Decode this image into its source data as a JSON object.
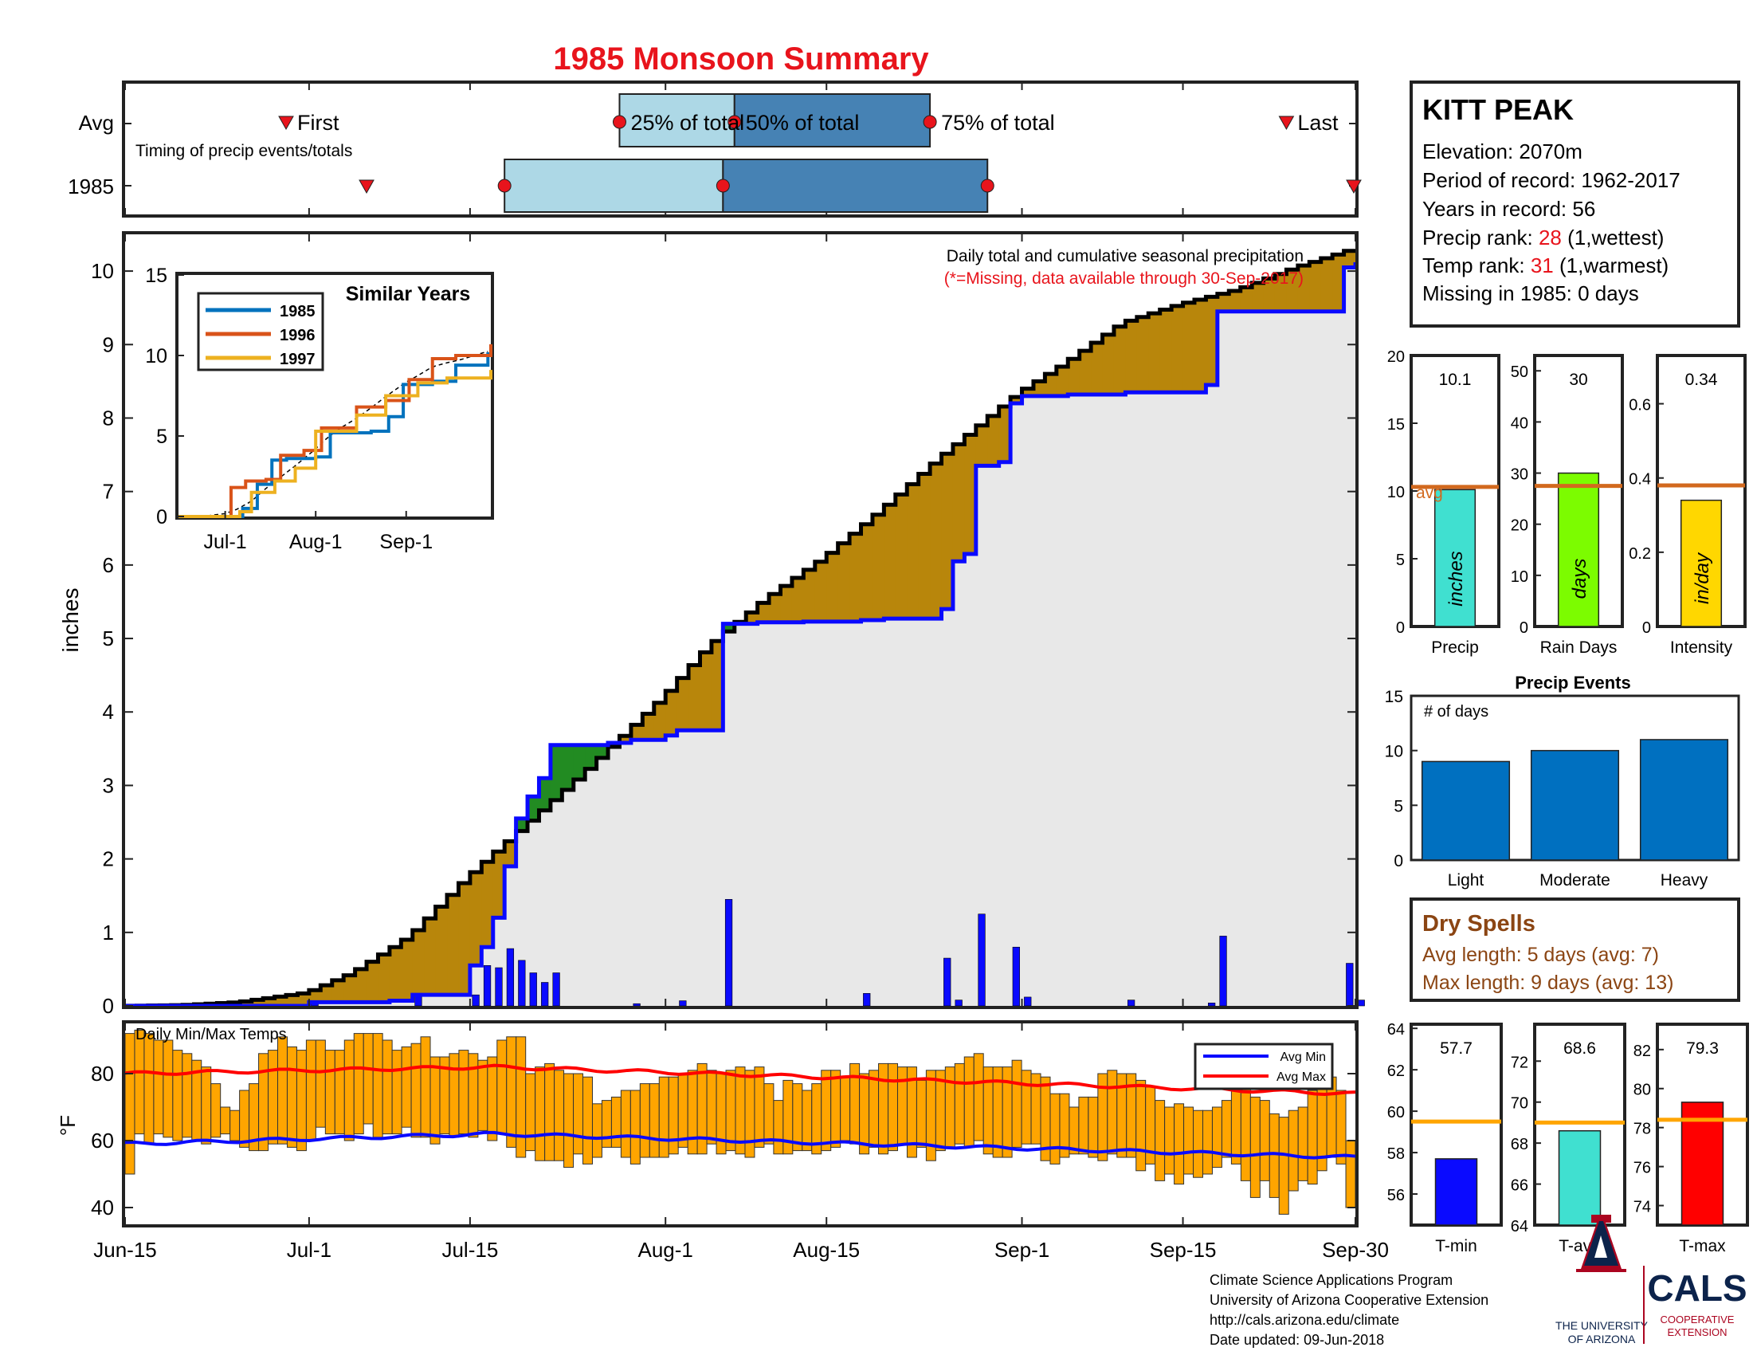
{
  "title": "1985 Monsoon Summary",
  "timing": {
    "row_labels": [
      "Avg",
      "1985"
    ],
    "caption": "Timing of precip events/totals",
    "first_label": "First",
    "last_label": "Last",
    "pct_labels": [
      "25% of total",
      "50% of total",
      "75% of total"
    ],
    "avg": {
      "first": "Jun-29",
      "p25": "Jul-28",
      "p50": "Aug-07",
      "p75": "Aug-24",
      "last": "Sep-24"
    },
    "year": {
      "first": "Jul-06",
      "p25": "Jul-18",
      "p50": "Aug-06",
      "p75": "Aug-29",
      "last": "Sep-30"
    }
  },
  "station": {
    "name": "KITT PEAK",
    "elevation": "Elevation: 2070m",
    "period": "Period of record: 1962-2017",
    "years": "Years in record: 56",
    "precip_rank_label": "Precip rank: ",
    "precip_rank": "28",
    "precip_rank_note": " (1,wettest)",
    "temp_rank_label": "Temp rank: ",
    "temp_rank": "31",
    "temp_rank_note": " (1,warmest)",
    "missing": "Missing in 1985: 0 days"
  },
  "colors": {
    "title": "#e8141c",
    "rank": "#e8141c",
    "below_avg_fill": "#b8860b",
    "above_avg_fill": "#228b22",
    "year_line": "#0a0aff",
    "daily_bar": "#0a0aff",
    "bg_fill": "#e8e8e8",
    "temp_bar": "#ffa500",
    "avg_min": "#0a0aff",
    "avg_max": "#ff0000",
    "avg_line": "#d2691e",
    "precip_bar": "#40e0d0",
    "raindays_bar": "#7cfc00",
    "intensity_bar": "#ffd700",
    "event_bar": "#0070c0",
    "dry_text": "#8b4513",
    "tmin_bar": "#0a0aff",
    "tavg_bar": "#40e0d0",
    "tmax_bar": "#ff0000",
    "temp_avg_line": "#ffa500",
    "s1985": "#0072bd",
    "s1996": "#d95319",
    "s1997": "#edb120"
  },
  "main_chart": {
    "note": "Daily total and cumulative seasonal precipitation",
    "missing_note": "(*=Missing, data available through 30-Sep-2017)",
    "ylabel": "inches",
    "yticks": [
      "0",
      "1",
      "2",
      "3",
      "4",
      "5",
      "6",
      "7",
      "8",
      "9",
      "10"
    ],
    "xticks": [
      "Jun-15",
      "Jul-1",
      "Jul-15",
      "Aug-1",
      "Aug-15",
      "Sep-1",
      "Sep-15",
      "Sep-30"
    ]
  },
  "similar_years": {
    "title": "Similar Years",
    "legend": [
      "1985",
      "1996",
      "1997"
    ],
    "yticks": [
      "0",
      "5",
      "10",
      "15"
    ],
    "xticks": [
      "Jul-1",
      "Aug-1",
      "Sep-1"
    ]
  },
  "temps": {
    "title": "Daily Min/Max Temps",
    "ylabel": "°F",
    "yticks": [
      "40",
      "60",
      "80"
    ],
    "legend_min": "Avg Min",
    "legend_max": "Avg Max"
  },
  "summary": {
    "precip": {
      "value": "10.1",
      "unit": "inches",
      "label": "Precip",
      "yticks": [
        "0",
        "5",
        "10",
        "15",
        "20"
      ],
      "avg_label": "avg"
    },
    "rain_days": {
      "value": "30",
      "unit": "days",
      "label": "Rain Days",
      "yticks": [
        "0",
        "10",
        "20",
        "30",
        "40",
        "50"
      ]
    },
    "intensity": {
      "value": "0.34",
      "unit": "in/day",
      "label": "Intensity",
      "yticks": [
        "0",
        "0.2",
        "0.4",
        "0.6"
      ]
    }
  },
  "events": {
    "title": "Precip Events",
    "sublabel": "# of days",
    "categories": [
      "Light",
      "Moderate",
      "Heavy"
    ],
    "yticks": [
      "0",
      "5",
      "10",
      "15"
    ]
  },
  "dry_spells": {
    "title": "Dry Spells",
    "avg": "Avg length: 5 days (avg: 7)",
    "max": "Max length: 9 days (avg: 13)"
  },
  "temp_summary": {
    "tmin": {
      "value": "57.7",
      "label": "T-min",
      "yticks": [
        "56",
        "58",
        "60",
        "62",
        "64"
      ]
    },
    "tavg": {
      "value": "68.6",
      "label": "T-avg",
      "yticks": [
        "64",
        "66",
        "68",
        "70",
        "72"
      ]
    },
    "tmax": {
      "value": "79.3",
      "label": "T-max",
      "yticks": [
        "74",
        "76",
        "78",
        "80",
        "82"
      ]
    }
  },
  "footer": {
    "lines": [
      "Climate Science Applications Program",
      "University of Arizona Cooperative Extension",
      "http://cals.arizona.edu/climate",
      " Date updated: 09-Jun-2018"
    ],
    "ua_line1": "THE UNIVERSITY",
    "ua_line2": "OF ARIZONA",
    "cals": "CALS",
    "coop1": "COOPERATIVE",
    "coop2": "EXTENSION"
  },
  "chart_data": [
    {
      "type": "line",
      "title": "Daily total and cumulative seasonal precipitation",
      "ylabel": "inches",
      "xlim": [
        "Jun-15",
        "Sep-30"
      ],
      "ylim": [
        0,
        10.5
      ],
      "series": [
        {
          "name": "1985",
          "kind": "cumulative",
          "points": [
            [
              "Jun-15",
              0
            ],
            [
              "Jun-30",
              0
            ],
            [
              "Jul-01",
              0.05
            ],
            [
              "Jul-08",
              0.07
            ],
            [
              "Jul-10",
              0.15
            ],
            [
              "Jul-14",
              0.15
            ],
            [
              "Jul-15",
              0.55
            ],
            [
              "Jul-16",
              0.8
            ],
            [
              "Jul-17",
              1.2
            ],
            [
              "Jul-18",
              1.9
            ],
            [
              "Jul-19",
              2.55
            ],
            [
              "Jul-20",
              2.85
            ],
            [
              "Jul-21",
              3.1
            ],
            [
              "Jul-22",
              3.55
            ],
            [
              "Jul-27",
              3.58
            ],
            [
              "Jul-29",
              3.62
            ],
            [
              "Aug-01",
              3.68
            ],
            [
              "Aug-02",
              3.75
            ],
            [
              "Aug-06",
              5.2
            ],
            [
              "Aug-09",
              5.22
            ],
            [
              "Aug-13",
              5.23
            ],
            [
              "Aug-18",
              5.25
            ],
            [
              "Aug-20",
              5.27
            ],
            [
              "Aug-25",
              5.4
            ],
            [
              "Aug-26",
              6.05
            ],
            [
              "Aug-27",
              6.15
            ],
            [
              "Aug-28",
              7.35
            ],
            [
              "Aug-30",
              7.4
            ],
            [
              "Aug-31",
              8.2
            ],
            [
              "Sep-01",
              8.3
            ],
            [
              "Sep-05",
              8.32
            ],
            [
              "Sep-10",
              8.35
            ],
            [
              "Sep-17",
              8.45
            ],
            [
              "Sep-18",
              9.45
            ],
            [
              "Sep-28",
              9.45
            ],
            [
              "Sep-29",
              10.05
            ],
            [
              "Sep-30",
              10.12
            ]
          ]
        },
        {
          "name": "Avg",
          "kind": "cumulative",
          "points": [
            [
              "Jun-15",
              0
            ],
            [
              "Jun-20",
              0.01
            ],
            [
              "Jun-25",
              0.05
            ],
            [
              "Jul-01",
              0.18
            ],
            [
              "Jul-05",
              0.45
            ],
            [
              "Jul-10",
              0.95
            ],
            [
              "Jul-15",
              1.75
            ],
            [
              "Jul-20",
              2.45
            ],
            [
              "Jul-25",
              3.15
            ],
            [
              "Aug-01",
              4.2
            ],
            [
              "Aug-05",
              4.9
            ],
            [
              "Aug-10",
              5.55
            ],
            [
              "Aug-15",
              6.1
            ],
            [
              "Aug-20",
              6.75
            ],
            [
              "Aug-25",
              7.45
            ],
            [
              "Sep-01",
              8.35
            ],
            [
              "Sep-05",
              8.75
            ],
            [
              "Sep-10",
              9.3
            ],
            [
              "Sep-15",
              9.55
            ],
            [
              "Sep-20",
              9.75
            ],
            [
              "Sep-25",
              10.05
            ],
            [
              "Sep-30",
              10.3
            ]
          ]
        }
      ],
      "daily_bars": [
        {
          "x": "Jul-01",
          "y": 0.05
        },
        {
          "x": "Jul-10",
          "y": 0.15
        },
        {
          "x": "Jul-15",
          "y": 0.15
        },
        {
          "x": "Jul-16",
          "y": 0.55
        },
        {
          "x": "Jul-17",
          "y": 0.52
        },
        {
          "x": "Jul-18",
          "y": 0.78
        },
        {
          "x": "Jul-19",
          "y": 0.62
        },
        {
          "x": "Jul-20",
          "y": 0.45
        },
        {
          "x": "Jul-21",
          "y": 0.32
        },
        {
          "x": "Jul-22",
          "y": 0.45
        },
        {
          "x": "Jul-29",
          "y": 0.03
        },
        {
          "x": "Aug-02",
          "y": 0.07
        },
        {
          "x": "Aug-06",
          "y": 1.45
        },
        {
          "x": "Aug-18",
          "y": 0.17
        },
        {
          "x": "Aug-25",
          "y": 0.65
        },
        {
          "x": "Aug-26",
          "y": 0.08
        },
        {
          "x": "Aug-28",
          "y": 1.25
        },
        {
          "x": "Aug-31",
          "y": 0.8
        },
        {
          "x": "Sep-01",
          "y": 0.12
        },
        {
          "x": "Sep-10",
          "y": 0.08
        },
        {
          "x": "Sep-17",
          "y": 0.04
        },
        {
          "x": "Sep-18",
          "y": 0.95
        },
        {
          "x": "Sep-29",
          "y": 0.58
        },
        {
          "x": "Sep-30",
          "y": 0.08
        }
      ]
    },
    {
      "type": "line",
      "title": "Similar Years",
      "xlim": [
        "Jun-15",
        "Sep-30"
      ],
      "ylim": [
        0,
        15
      ],
      "series": [
        {
          "name": "1985",
          "points": [
            [
              "Jun-15",
              0
            ],
            [
              "Jul-01",
              0
            ],
            [
              "Jul-07",
              0.5
            ],
            [
              "Jul-12",
              2
            ],
            [
              "Jul-17",
              3.5
            ],
            [
              "Jul-22",
              3.6
            ],
            [
              "Aug-01",
              3.7
            ],
            [
              "Aug-06",
              5.2
            ],
            [
              "Aug-20",
              5.3
            ],
            [
              "Aug-26",
              6.2
            ],
            [
              "Aug-31",
              8.2
            ],
            [
              "Sep-10",
              8.4
            ],
            [
              "Sep-18",
              9.4
            ],
            [
              "Sep-29",
              10.1
            ]
          ]
        },
        {
          "name": "1996",
          "points": [
            [
              "Jun-15",
              0
            ],
            [
              "Jun-28",
              0
            ],
            [
              "Jul-03",
              1.8
            ],
            [
              "Jul-08",
              2.2
            ],
            [
              "Jul-15",
              2.3
            ],
            [
              "Jul-20",
              3.8
            ],
            [
              "Jul-28",
              4.1
            ],
            [
              "Aug-03",
              5.5
            ],
            [
              "Aug-15",
              6.8
            ],
            [
              "Aug-25",
              7.2
            ],
            [
              "Sep-02",
              8.5
            ],
            [
              "Sep-10",
              9.8
            ],
            [
              "Sep-18",
              10
            ],
            [
              "Sep-30",
              10.7
            ]
          ]
        },
        {
          "name": "1997",
          "points": [
            [
              "Jun-15",
              0
            ],
            [
              "Jul-01",
              0
            ],
            [
              "Jul-06",
              0.3
            ],
            [
              "Jul-10",
              1.5
            ],
            [
              "Jul-18",
              2.2
            ],
            [
              "Jul-25",
              3
            ],
            [
              "Aug-01",
              5.3
            ],
            [
              "Aug-15",
              6.3
            ],
            [
              "Aug-25",
              7.5
            ],
            [
              "Sep-05",
              8.3
            ],
            [
              "Sep-15",
              8.6
            ],
            [
              "Sep-30",
              9.1
            ]
          ]
        }
      ]
    },
    {
      "type": "bar",
      "title": "Daily Min/Max Temps",
      "ylabel": "°F",
      "ylim": [
        35,
        95
      ],
      "x_range": [
        "Jun-15",
        "Sep-30"
      ],
      "daily_min": [
        50,
        62,
        59,
        62,
        61,
        60,
        61,
        60,
        59,
        61,
        62,
        60,
        58,
        57,
        57,
        59,
        59,
        58,
        57,
        60,
        64,
        62,
        62,
        60,
        62,
        65,
        61,
        62,
        62,
        64,
        61,
        61,
        59,
        62,
        61,
        62,
        61,
        63,
        60,
        62,
        58,
        55,
        57,
        54,
        54,
        54,
        52,
        56,
        53,
        55,
        58,
        58,
        55,
        53,
        55,
        55,
        55,
        56,
        58,
        56,
        56,
        59,
        56,
        57,
        56,
        55,
        58,
        59,
        56,
        56,
        57,
        57,
        56,
        57,
        58,
        60,
        59,
        56,
        58,
        56,
        57,
        59,
        55,
        58,
        54,
        57,
        58,
        59,
        58,
        60,
        56,
        55,
        55,
        58,
        59,
        59,
        54,
        53,
        55,
        56,
        56,
        55,
        54,
        56,
        55,
        55,
        51,
        53,
        48,
        50,
        47,
        50,
        49,
        50,
        52,
        55,
        53,
        48,
        43,
        48,
        43,
        38,
        45,
        48,
        47,
        51,
        55,
        53,
        40
      ],
      "daily_max": [
        92,
        93,
        92,
        90,
        90,
        87,
        86,
        84,
        82,
        77,
        70,
        69,
        75,
        77,
        86,
        87,
        91,
        88,
        87,
        90,
        90,
        87,
        87,
        90,
        92,
        92,
        92,
        90,
        87,
        88,
        89,
        91,
        85,
        85,
        86,
        87,
        86,
        84,
        85,
        90,
        91,
        91,
        80,
        82,
        83,
        81,
        80,
        80,
        79,
        71,
        72,
        73,
        75,
        75,
        77,
        77,
        79,
        79,
        80,
        81,
        83,
        81,
        80,
        81,
        82,
        81,
        82,
        77,
        72,
        78,
        77,
        75,
        77,
        81,
        81,
        79,
        83,
        80,
        81,
        83,
        83,
        82,
        82,
        78,
        81,
        81,
        82,
        83,
        85,
        86,
        82,
        82,
        82,
        84,
        81,
        80,
        79,
        74,
        74,
        70,
        73,
        73,
        80,
        81,
        80,
        80,
        78,
        76,
        72,
        70,
        71,
        70,
        69,
        69,
        70,
        72,
        76,
        78,
        73,
        72,
        68,
        67,
        69,
        70,
        75,
        77,
        79,
        75,
        60
      ],
      "avg_min": {
        "start": 59,
        "mid": 62,
        "end": 55
      },
      "avg_max": {
        "start": 80,
        "mid": 82,
        "end": 74
      }
    },
    {
      "type": "bar",
      "title": "Precip",
      "categories": [
        "Precip"
      ],
      "values": [
        10.1
      ],
      "avg": 10.3,
      "ylim": [
        0,
        20
      ]
    },
    {
      "type": "bar",
      "title": "Rain Days",
      "categories": [
        "Rain Days"
      ],
      "values": [
        30
      ],
      "avg": 27.5,
      "ylim": [
        0,
        53
      ]
    },
    {
      "type": "bar",
      "title": "Intensity",
      "categories": [
        "Intensity"
      ],
      "values": [
        0.34
      ],
      "avg": 0.38,
      "ylim": [
        0,
        0.73
      ]
    },
    {
      "type": "bar",
      "title": "Precip Events",
      "categories": [
        "Light",
        "Moderate",
        "Heavy"
      ],
      "values": [
        9,
        10,
        11
      ],
      "ylim": [
        0,
        15
      ]
    },
    {
      "type": "bar",
      "title": "T-min",
      "categories": [
        "T-min"
      ],
      "values": [
        57.7
      ],
      "avg": 59.5,
      "ylim": [
        54.5,
        64.2
      ]
    },
    {
      "type": "bar",
      "title": "T-avg",
      "categories": [
        "T-avg"
      ],
      "values": [
        68.6
      ],
      "avg": 69,
      "ylim": [
        64,
        73.8
      ]
    },
    {
      "type": "bar",
      "title": "T-max",
      "categories": [
        "T-max"
      ],
      "values": [
        79.3
      ],
      "avg": 78.4,
      "ylim": [
        73,
        83.3
      ]
    }
  ]
}
